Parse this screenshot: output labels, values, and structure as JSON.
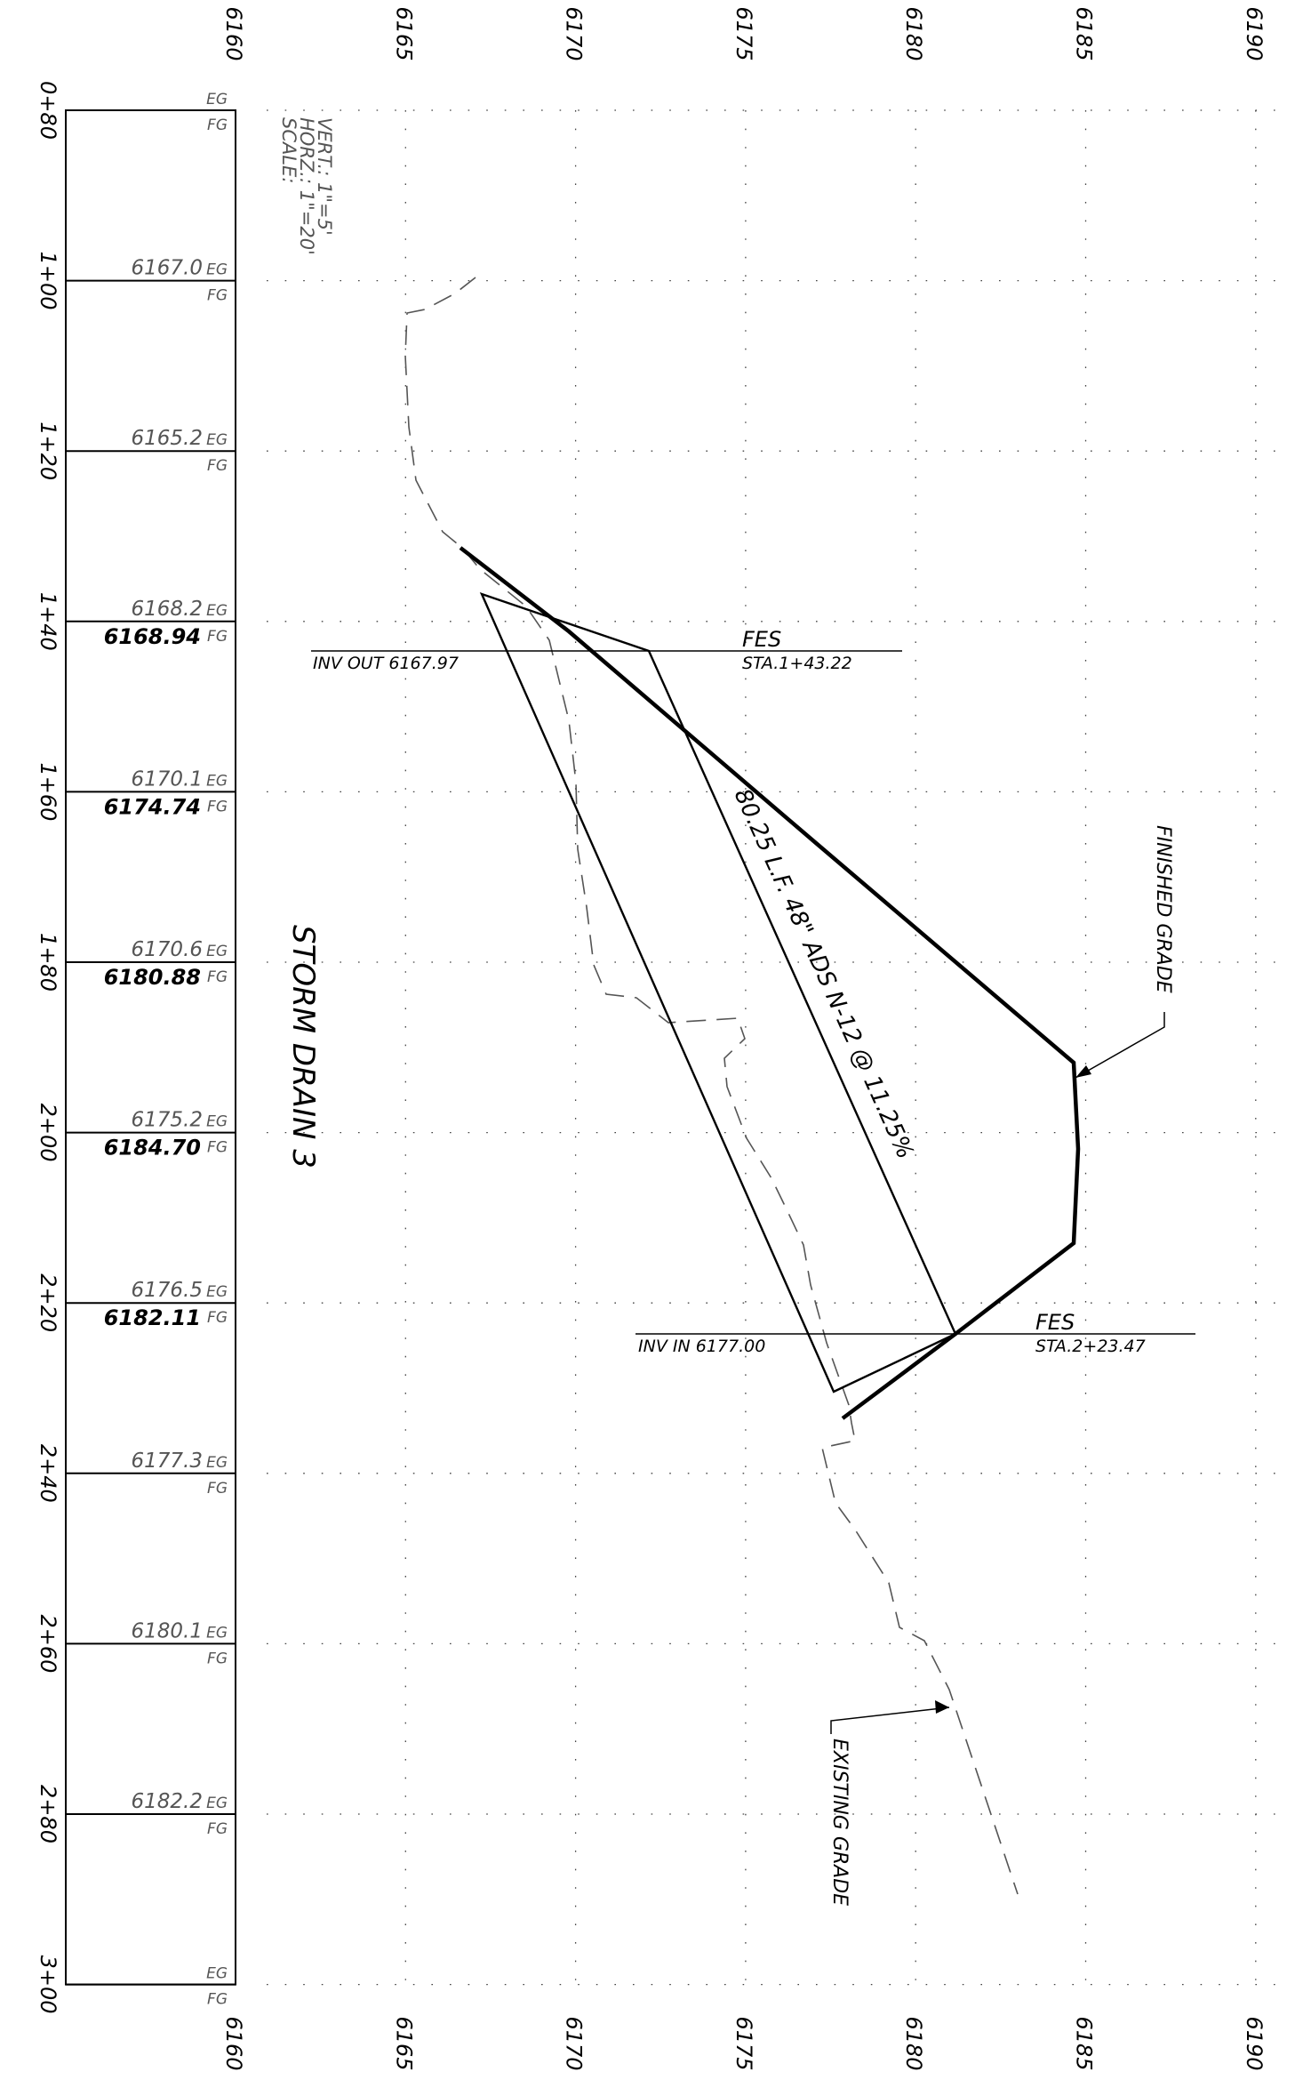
{
  "title": "STORM DRAIN 3",
  "scale": {
    "title": "SCALE:",
    "horizontal": "HORZ.: 1\"=20'",
    "vertical": "VERT.: 1\"=5'"
  },
  "elevation_ticks": [
    "6160",
    "6165",
    "6170",
    "6175",
    "6180",
    "6185",
    "6190"
  ],
  "stations": [
    {
      "label": "0+80",
      "eg": "",
      "fg": ""
    },
    {
      "label": "1+00",
      "eg": "6167.0",
      "fg": ""
    },
    {
      "label": "1+20",
      "eg": "6165.2",
      "fg": ""
    },
    {
      "label": "1+40",
      "eg": "6168.2",
      "fg": "6168.94"
    },
    {
      "label": "1+60",
      "eg": "6170.1",
      "fg": "6174.74"
    },
    {
      "label": "1+80",
      "eg": "6170.6",
      "fg": "6180.88"
    },
    {
      "label": "2+00",
      "eg": "6175.2",
      "fg": "6184.70"
    },
    {
      "label": "2+20",
      "eg": "6176.5",
      "fg": "6182.11"
    },
    {
      "label": "2+40",
      "eg": "6177.3",
      "fg": ""
    },
    {
      "label": "2+60",
      "eg": "6180.1",
      "fg": ""
    },
    {
      "label": "2+80",
      "eg": "6182.2",
      "fg": ""
    },
    {
      "label": "3+00",
      "eg": "",
      "fg": ""
    }
  ],
  "eg_tag": "EG",
  "fg_tag": "FG",
  "fes_out": {
    "label": "FES",
    "station": "STA.1+43.22",
    "invert": "INV OUT 6167.97"
  },
  "fes_in": {
    "label": "FES",
    "station": "STA.2+23.47",
    "invert": "INV IN 6177.00"
  },
  "pipe_label": "80.25 L.F. 48\" ADS N-12 @ 11.25%",
  "finished_grade_label": "FINISHED GRADE",
  "existing_grade_label": "EXISTING GRADE"
}
